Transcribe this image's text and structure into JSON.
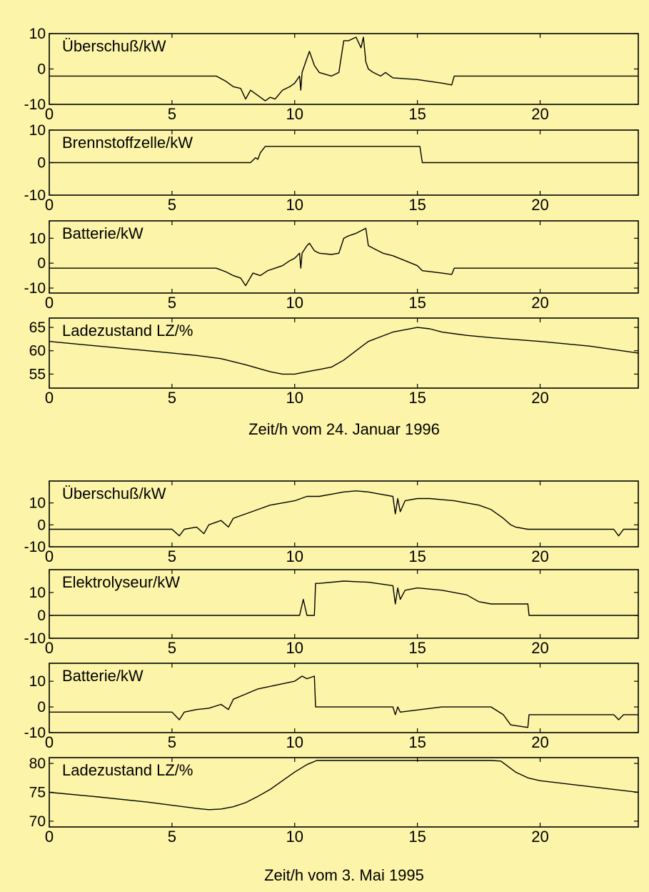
{
  "colors": {
    "background": "#fcf4a9",
    "line": "#000000",
    "frame": "#000000"
  },
  "figure1": {
    "xlabel": "Zeit/h vom 24. Januar 1996",
    "x_ticks": [
      "0",
      "5",
      "10",
      "15",
      "20"
    ]
  },
  "figure2": {
    "xlabel": "Zeit/h vom 3. Mai 1995",
    "x_ticks": [
      "0",
      "5",
      "10",
      "15",
      "20"
    ]
  },
  "chart_data": [
    {
      "type": "line",
      "id": "jan_surplus",
      "title": "Überschuß/kW",
      "xlim": [
        0,
        24
      ],
      "ylim": [
        -10,
        10
      ],
      "x_ticks": [
        0,
        5,
        10,
        15,
        20
      ],
      "y_ticks": [
        -10,
        0,
        10
      ],
      "y_tick_labels": [
        "-10",
        "0",
        "10"
      ],
      "x": [
        0,
        2,
        4,
        6,
        6.8,
        7.2,
        7.5,
        7.8,
        8.0,
        8.2,
        8.5,
        8.8,
        9.0,
        9.2,
        9.5,
        9.8,
        10.0,
        10.2,
        10.25,
        10.3,
        10.5,
        10.6,
        10.8,
        11.0,
        11.5,
        11.8,
        12.0,
        12.2,
        12.5,
        12.7,
        12.8,
        12.9,
        13.0,
        13.2,
        13.5,
        13.7,
        14.0,
        15.0,
        16.0,
        16.4,
        16.5,
        18,
        20,
        22,
        24
      ],
      "y": [
        -2,
        -2,
        -2,
        -2,
        -2,
        -3.5,
        -5,
        -5.5,
        -8.5,
        -6,
        -7.5,
        -9,
        -8,
        -8.5,
        -6,
        -5,
        -4,
        -2,
        -6,
        -1,
        3,
        5,
        1,
        -1,
        -2,
        -1,
        8,
        8,
        9,
        6,
        9,
        2,
        0,
        -1,
        -2,
        -1,
        -2.5,
        -3,
        -4,
        -4.5,
        -2,
        -2,
        -2,
        -2,
        -2
      ]
    },
    {
      "type": "line",
      "id": "jan_fuelcell",
      "title": "Brennstoffzelle/kW",
      "xlim": [
        0,
        24
      ],
      "ylim": [
        -10,
        10
      ],
      "x_ticks": [
        0,
        5,
        10,
        15,
        20
      ],
      "y_ticks": [
        -10,
        0,
        10
      ],
      "y_tick_labels": [
        "-10",
        "0",
        "10"
      ],
      "x": [
        0,
        8.2,
        8.4,
        8.5,
        8.6,
        8.8,
        9.0,
        15.1,
        15.2,
        24
      ],
      "y": [
        0,
        0,
        1.5,
        1,
        3,
        5,
        5,
        5,
        0,
        0
      ]
    },
    {
      "type": "line",
      "id": "jan_battery",
      "title": "Batterie/kW",
      "xlim": [
        0,
        24
      ],
      "ylim": [
        -12,
        17
      ],
      "x_ticks": [
        0,
        5,
        10,
        15,
        20
      ],
      "y_ticks": [
        -10,
        0,
        10
      ],
      "y_tick_labels": [
        "-10",
        "0",
        "10"
      ],
      "x": [
        0,
        2,
        4,
        6,
        6.8,
        7.2,
        7.5,
        7.8,
        8.0,
        8.3,
        8.6,
        8.9,
        9.2,
        9.5,
        9.8,
        10.0,
        10.2,
        10.25,
        10.3,
        10.5,
        10.6,
        10.8,
        11.0,
        11.5,
        11.8,
        12.0,
        12.2,
        12.5,
        12.7,
        12.9,
        13.0,
        13.3,
        13.6,
        14.0,
        14.5,
        15.0,
        15.1,
        15.2,
        16.0,
        16.4,
        16.5,
        18,
        20,
        22,
        24
      ],
      "y": [
        -2,
        -2,
        -2,
        -2,
        -2,
        -3.5,
        -5,
        -6,
        -9,
        -4,
        -5,
        -3,
        -2,
        -1,
        1,
        2,
        4,
        -2,
        4,
        7,
        8,
        5,
        4,
        3.5,
        4,
        10,
        11,
        12,
        13,
        14,
        7,
        5.5,
        4,
        3,
        1,
        -1,
        -2,
        -3,
        -4,
        -4.5,
        -2,
        -2,
        -2,
        -2,
        -2
      ]
    },
    {
      "type": "line",
      "id": "jan_soc",
      "title": "Ladezustand LZ/%",
      "xlim": [
        0,
        24
      ],
      "ylim": [
        52,
        67
      ],
      "x_ticks": [
        0,
        5,
        10,
        15,
        20
      ],
      "y_ticks": [
        55,
        60,
        65
      ],
      "y_tick_labels": [
        "55",
        "60",
        "65"
      ],
      "x": [
        0,
        2,
        4,
        6,
        7,
        8,
        9,
        9.5,
        10,
        10.5,
        11,
        11.5,
        12,
        12.5,
        13,
        13.5,
        14,
        14.5,
        15,
        15.5,
        16,
        17,
        18,
        20,
        22,
        24
      ],
      "y": [
        62,
        61,
        60,
        59,
        58.3,
        57,
        55.5,
        55,
        55,
        55.5,
        56,
        56.5,
        58,
        60,
        62,
        63,
        64,
        64.5,
        65,
        64.7,
        64,
        63.3,
        62.8,
        62,
        61,
        59.5
      ]
    },
    {
      "type": "line",
      "id": "may_surplus",
      "title": "Überschuß/kW",
      "xlim": [
        0,
        24
      ],
      "ylim": [
        -10,
        20
      ],
      "x_ticks": [
        0,
        5,
        10,
        15,
        20
      ],
      "y_ticks": [
        -10,
        0,
        10
      ],
      "y_tick_labels": [
        "-10",
        "0",
        "10"
      ],
      "x": [
        0,
        2,
        4,
        5,
        5.3,
        5.5,
        6,
        6.3,
        6.5,
        7,
        7.3,
        7.5,
        8,
        8.5,
        9,
        9.5,
        10,
        10.5,
        11,
        11.5,
        12,
        12.5,
        13,
        13.5,
        14,
        14.1,
        14.2,
        14.3,
        14.5,
        15,
        15.5,
        16,
        16.5,
        17,
        17.5,
        18,
        18.5,
        18.8,
        19,
        19.5,
        20,
        22,
        23,
        23.2,
        23.4,
        24
      ],
      "y": [
        -2,
        -2,
        -2,
        -2,
        -5,
        -2,
        -1,
        -4,
        0,
        2,
        -1,
        3,
        5,
        7,
        9,
        10,
        11,
        13,
        13,
        14,
        15,
        15.5,
        15,
        14,
        13,
        5,
        12,
        6,
        11,
        12,
        12,
        11.5,
        11,
        10,
        9,
        7,
        3,
        0,
        -1,
        -2,
        -2,
        -2,
        -2,
        -5,
        -2,
        -2
      ]
    },
    {
      "type": "line",
      "id": "may_electrolyzer",
      "title": "Elektrolyseur/kW",
      "xlim": [
        0,
        24
      ],
      "ylim": [
        -10,
        20
      ],
      "x_ticks": [
        0,
        5,
        10,
        15,
        20
      ],
      "y_ticks": [
        -10,
        0,
        10
      ],
      "y_tick_labels": [
        "-10",
        "0",
        "10"
      ],
      "x": [
        0,
        10.2,
        10.35,
        10.5,
        10.6,
        10.8,
        10.85,
        11,
        12,
        13,
        14,
        14.1,
        14.2,
        14.3,
        14.5,
        15,
        16,
        17,
        17.5,
        18,
        19.5,
        19.55,
        24
      ],
      "y": [
        0,
        0,
        7,
        0,
        0,
        0,
        14,
        14,
        15,
        14.5,
        13,
        5,
        12,
        7,
        11,
        12,
        11,
        9,
        6,
        5,
        5,
        0,
        0
      ]
    },
    {
      "type": "line",
      "id": "may_battery",
      "title": "Batterie/kW",
      "xlim": [
        0,
        24
      ],
      "ylim": [
        -10,
        17
      ],
      "x_ticks": [
        0,
        5,
        10,
        15,
        20
      ],
      "y_ticks": [
        -10,
        0,
        10
      ],
      "y_tick_labels": [
        "-10",
        "0",
        "10"
      ],
      "x": [
        0,
        2,
        4,
        5,
        5.3,
        5.5,
        6,
        6.5,
        7,
        7.3,
        7.5,
        8,
        8.5,
        9,
        9.5,
        10,
        10.3,
        10.5,
        10.8,
        10.85,
        12,
        14,
        14.1,
        14.2,
        14.3,
        16,
        18,
        18.5,
        18.8,
        19.5,
        19.55,
        22,
        23,
        23.2,
        23.4,
        24
      ],
      "y": [
        -2,
        -2,
        -2,
        -2,
        -5,
        -2,
        -1,
        -0.5,
        1,
        -1,
        3,
        5,
        7,
        8,
        9,
        10,
        12,
        11,
        12,
        0,
        0,
        0,
        -3,
        0,
        -2,
        0,
        0,
        -3,
        -7,
        -8,
        -3,
        -3,
        -3,
        -5,
        -3,
        -3
      ]
    },
    {
      "type": "line",
      "id": "may_soc",
      "title": "Ladezustand LZ/%",
      "xlim": [
        0,
        24
      ],
      "ylim": [
        69,
        81
      ],
      "x_ticks": [
        0,
        5,
        10,
        15,
        20
      ],
      "y_ticks": [
        70,
        75,
        80
      ],
      "y_tick_labels": [
        "70",
        "75",
        "80"
      ],
      "x": [
        0,
        2,
        4,
        6,
        6.5,
        7,
        7.5,
        8,
        8.5,
        9,
        9.5,
        10,
        10.5,
        10.9,
        12,
        14,
        16,
        18,
        18.4,
        19,
        19.5,
        20,
        22,
        24
      ],
      "y": [
        75,
        74.2,
        73.3,
        72.2,
        72,
        72.1,
        72.5,
        73.2,
        74.3,
        75.5,
        77,
        78.5,
        79.8,
        80.5,
        80.5,
        80.5,
        80.5,
        80.5,
        80.4,
        78.5,
        77.5,
        77,
        76,
        75
      ]
    }
  ]
}
